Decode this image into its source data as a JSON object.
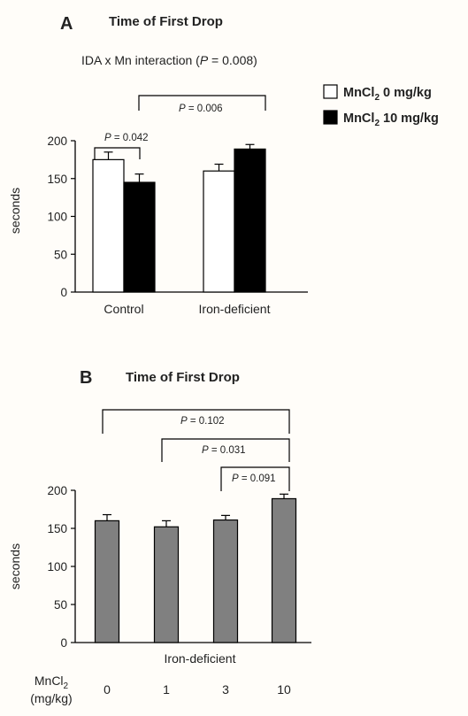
{
  "chart_data": [
    {
      "panel": "A",
      "type": "bar",
      "title": "Time of First Drop",
      "subtitle_prefix": "IDA x Mn interaction (",
      "subtitle_p": "P",
      "subtitle_suffix": " = 0.008)",
      "ylabel": "seconds",
      "ylim": [
        0,
        200
      ],
      "yticks": [
        0,
        50,
        100,
        150,
        200
      ],
      "categories": [
        "Control",
        "Iron-deficient"
      ],
      "series": [
        {
          "name_main": "MnCl",
          "name_sub": "2",
          "name_rest": " 0 mg/kg",
          "color": "#ffffff",
          "values": [
            175,
            160
          ],
          "errors": [
            10,
            9
          ]
        },
        {
          "name_main": "MnCl",
          "name_sub": "2",
          "name_rest": " 10 mg/kg",
          "color": "#000000",
          "values": [
            145,
            189
          ],
          "errors": [
            11,
            6
          ]
        }
      ],
      "legend_position": "top-right",
      "annotations": [
        {
          "p_letter": "P",
          "text": " = 0.042"
        },
        {
          "p_letter": "P",
          "text": " = 0.006"
        }
      ]
    },
    {
      "panel": "B",
      "type": "bar",
      "title": "Time of First Drop",
      "ylabel": "seconds",
      "xlabel": "Iron-deficient",
      "ylim": [
        0,
        200
      ],
      "yticks": [
        0,
        50,
        100,
        150,
        200
      ],
      "categories": [
        "0",
        "1",
        "3",
        "10"
      ],
      "category_axis_label": {
        "main": "MnCl",
        "sub": "2",
        "unit": "(mg/kg)"
      },
      "bar_color": "#808080",
      "values": [
        160,
        152,
        161,
        189
      ],
      "errors": [
        8,
        8,
        6,
        6
      ],
      "annotations": [
        {
          "p_letter": "P",
          "text": " = 0.102"
        },
        {
          "p_letter": "P",
          "text": " = 0.031"
        },
        {
          "p_letter": "P",
          "text": " = 0.091"
        }
      ]
    }
  ]
}
